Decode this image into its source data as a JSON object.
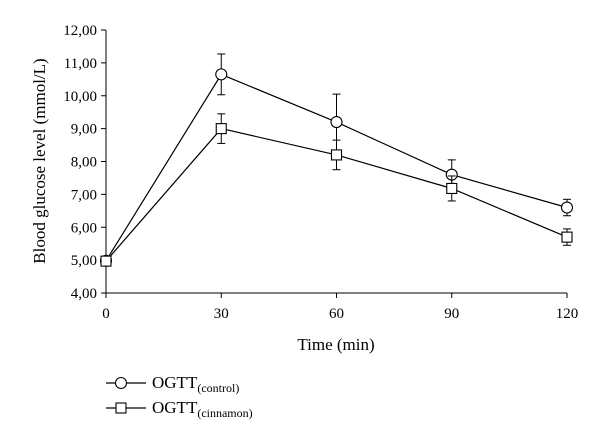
{
  "chart_data": {
    "type": "line",
    "xlabel": "Time (min)",
    "ylabel": "Blood glucose level (mmol/L)",
    "x": [
      0,
      30,
      60,
      90,
      120
    ],
    "xticks": [
      "0",
      "30",
      "60",
      "90",
      "120"
    ],
    "xlim": [
      0,
      120
    ],
    "ylim": [
      4,
      12
    ],
    "yticks": [
      "4,00",
      "5,00",
      "6,00",
      "7,00",
      "8,00",
      "9,00",
      "10,00",
      "11,00",
      "12,00"
    ],
    "grid": false,
    "legend_position": "bottom-left",
    "series": [
      {
        "name": "OGTT",
        "name_subscript": "(control)",
        "marker": "circle",
        "values": [
          4.98,
          10.65,
          9.2,
          7.6,
          6.6
        ],
        "errors": [
          0.05,
          0.62,
          0.85,
          0.45,
          0.25
        ]
      },
      {
        "name": "OGTT",
        "name_subscript": "(cinnamon)",
        "marker": "square",
        "values": [
          4.97,
          9.0,
          8.2,
          7.18,
          5.7
        ],
        "errors": [
          0.05,
          0.45,
          0.45,
          0.38,
          0.25
        ]
      }
    ]
  }
}
